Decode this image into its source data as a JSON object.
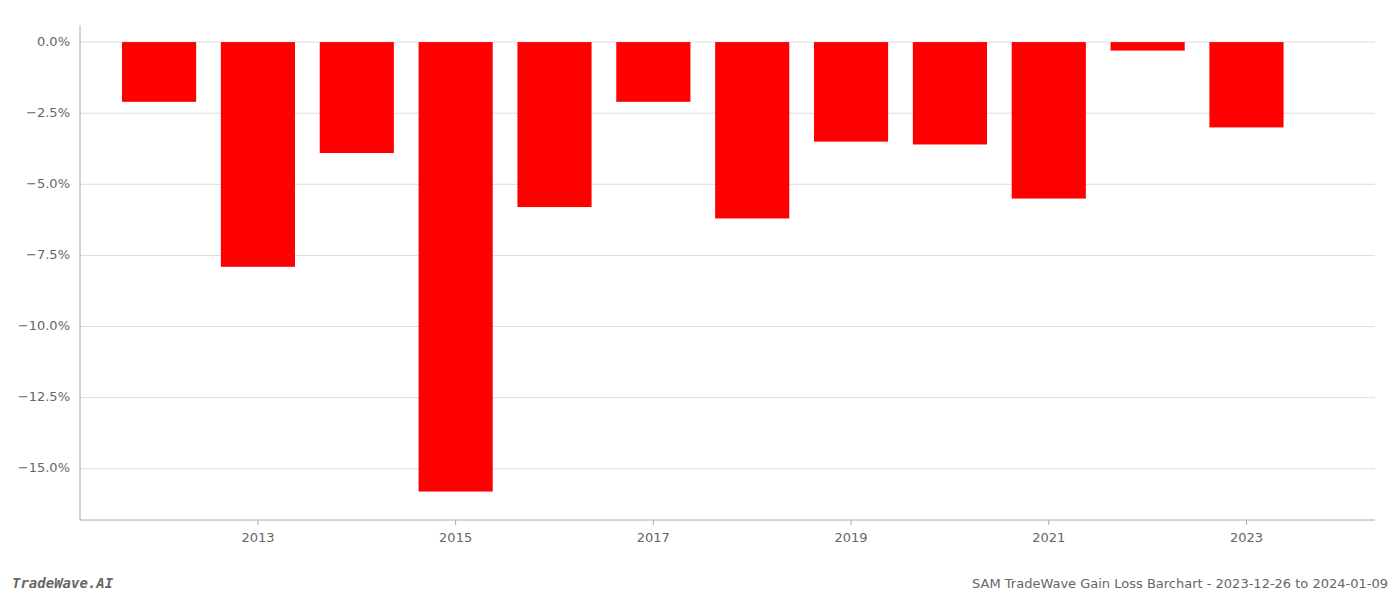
{
  "chart_data": {
    "type": "bar",
    "title": "SAM TradeWave Gain Loss Barchart - 2023-12-26 to 2024-01-09",
    "annotations": [
      "TradeWave.AI"
    ],
    "x": [
      2012,
      2013,
      2014,
      2015,
      2016,
      2017,
      2018,
      2019,
      2020,
      2021,
      2022,
      2023
    ],
    "values": [
      -2.1,
      -7.9,
      -3.9,
      -15.8,
      -5.8,
      -2.1,
      -6.2,
      -3.5,
      -3.6,
      -5.5,
      -0.3,
      -3.0
    ],
    "color": "#ff0000",
    "xlim": [
      2011.2,
      2024.3
    ],
    "xticks": [
      2013,
      2015,
      2017,
      2019,
      2021,
      2023
    ],
    "ylim": [
      -16.8,
      0.6
    ],
    "yticks": [
      {
        "value": 0.0,
        "label": "0.0%"
      },
      {
        "value": -2.5,
        "label": "−2.5%"
      },
      {
        "value": -5.0,
        "label": "−5.0%"
      },
      {
        "value": -7.5,
        "label": "−7.5%"
      },
      {
        "value": -10.0,
        "label": "−10.0%"
      },
      {
        "value": -12.5,
        "label": "−12.5%"
      },
      {
        "value": -15.0,
        "label": "−15.0%"
      }
    ],
    "grid": true
  }
}
